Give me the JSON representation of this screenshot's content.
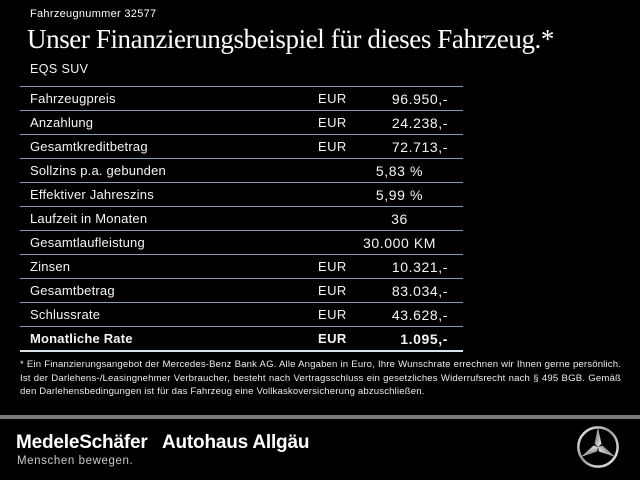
{
  "header": {
    "vehicle_number": "Fahrzeugnummer 32577",
    "title": "Unser Finanzierungsbeispiel für dieses Fahrzeug.*",
    "model": "EQS SUV"
  },
  "table": {
    "rows": [
      {
        "label": "Fahrzeugpreis",
        "currency": "EUR",
        "value": "96.950,-",
        "bold": false
      },
      {
        "label": "Anzahlung",
        "currency": "EUR",
        "value": "24.238,-",
        "bold": false
      },
      {
        "label": "Gesamtkreditbetrag",
        "currency": "EUR",
        "value": "72.713,-",
        "bold": false
      },
      {
        "label": "Sollzins p.a. gebunden",
        "currency": "",
        "value": "5,83 %",
        "bold": false
      },
      {
        "label": "Effektiver Jahreszins",
        "currency": "",
        "value": "5,99 %",
        "bold": false
      },
      {
        "label": "Laufzeit in Monaten",
        "currency": "",
        "value": "36",
        "bold": false
      },
      {
        "label": "Gesamtlaufleistung",
        "currency": "",
        "value": "30.000 KM",
        "bold": false
      },
      {
        "label": "Zinsen",
        "currency": "EUR",
        "value": "10.321,-",
        "bold": false
      },
      {
        "label": "Gesamtbetrag",
        "currency": "EUR",
        "value": "83.034,-",
        "bold": false
      },
      {
        "label": "Schlussrate",
        "currency": "EUR",
        "value": "43.628,-",
        "bold": false
      },
      {
        "label": "Monatliche Rate",
        "currency": "EUR",
        "value": "1.095,-",
        "bold": true
      }
    ]
  },
  "footnote": "* Ein Finanzierungsangebot der Mercedes-Benz Bank AG. Alle Angaben in Euro, Ihre Wunschrate errechnen wir Ihnen gerne persönlich. Ist der Darlehens-/Leasingnehmer Verbraucher, besteht nach Vertragsschluss ein gesetzliches Widerrufsrecht nach § 495 BGB. Gemäß den Darlehensbedingungen ist für das Fahrzeug eine Vollkaskoversicherung abzuschließen.",
  "footer": {
    "dealer_logo": "MedeleSchäfer",
    "dealer_tagline": "Menschen bewegen.",
    "dealer_secondary": "Autohaus Allgäu",
    "brand_icon": "mercedes-star-icon"
  },
  "colors": {
    "background": "#000000",
    "text": "#f5f5f5",
    "table_line": "#879fb4",
    "table_bottom_line": "#d9e3eb",
    "footer_separator": "#7a7a7a",
    "tagline": "#c9c9c9"
  }
}
